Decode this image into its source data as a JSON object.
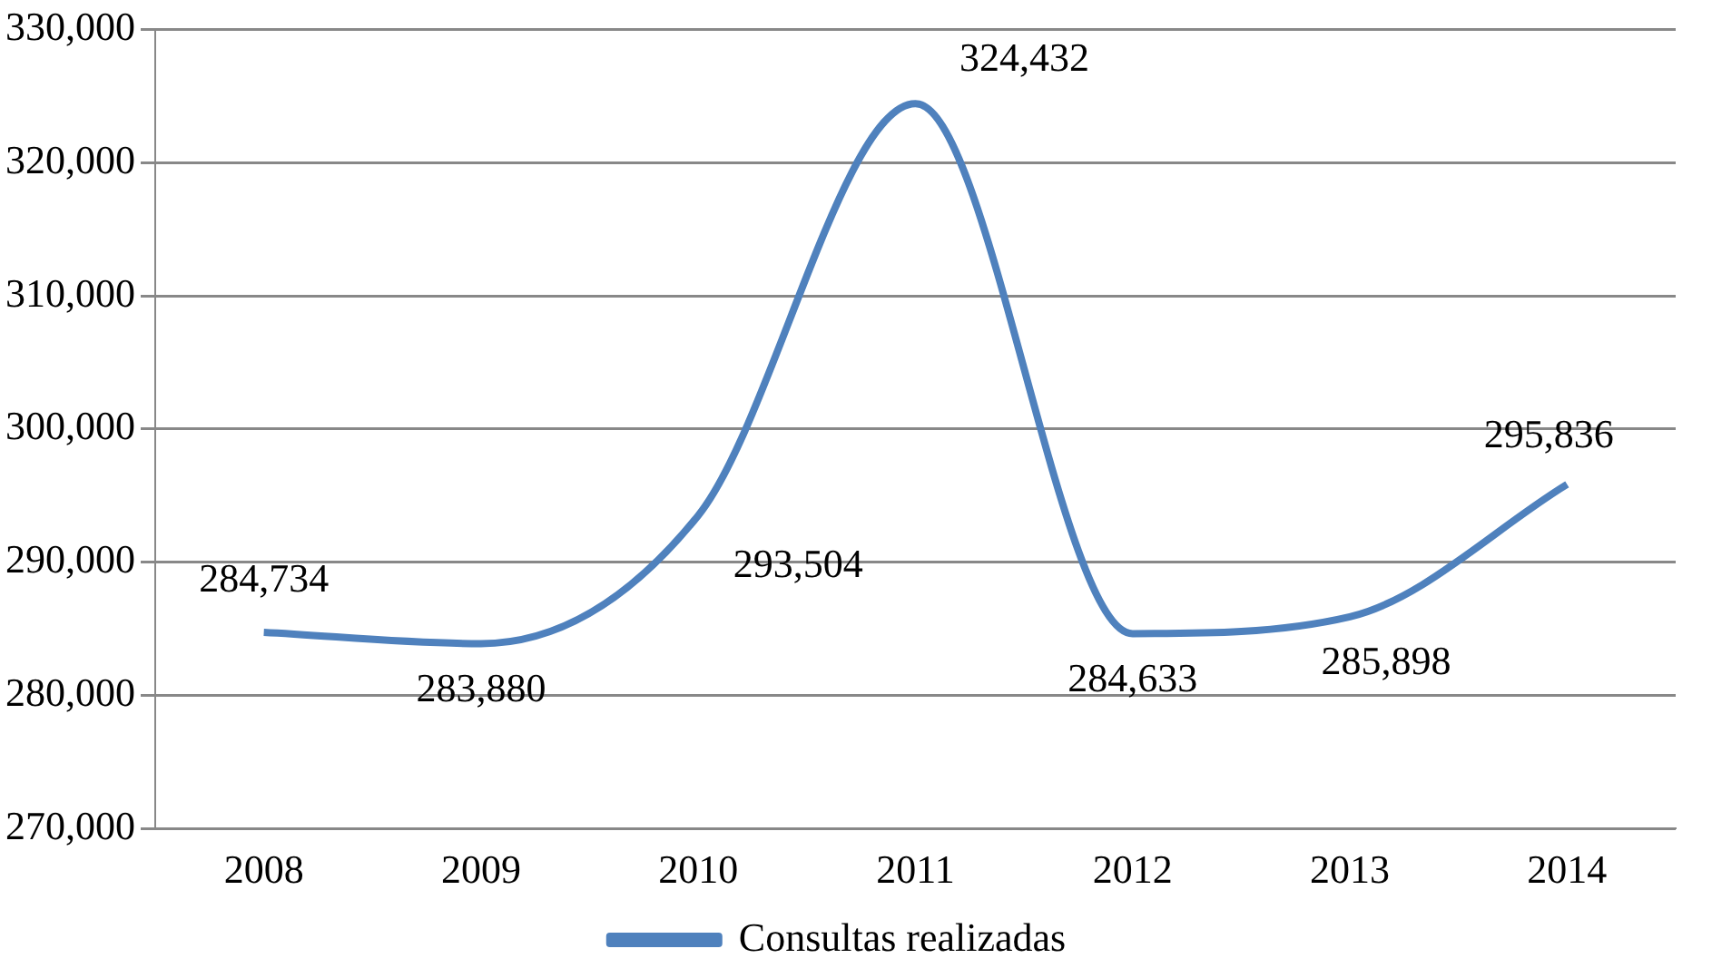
{
  "chart_data": {
    "type": "line",
    "categories": [
      "2008",
      "2009",
      "2010",
      "2011",
      "2012",
      "2013",
      "2014"
    ],
    "series": [
      {
        "name": "Consultas realizadas",
        "color": "#4f81bd",
        "values": [
          284734,
          283880,
          293504,
          324432,
          284633,
          285898,
          295836
        ]
      }
    ],
    "value_labels": [
      "284,734",
      "283,880",
      "293,504",
      "324,432",
      "284,633",
      "285,898",
      "295,836"
    ],
    "ylim": [
      270000,
      330000
    ],
    "yticks": [
      {
        "value": 270000,
        "label": "270,000"
      },
      {
        "value": 280000,
        "label": "280,000"
      },
      {
        "value": 290000,
        "label": "290,000"
      },
      {
        "value": 300000,
        "label": "300,000"
      },
      {
        "value": 310000,
        "label": "310,000"
      },
      {
        "value": 320000,
        "label": "320,000"
      },
      {
        "value": 330000,
        "label": "330,000"
      }
    ],
    "grid": "y",
    "legend": "bottom",
    "marker": "none",
    "line_style": "solid"
  }
}
